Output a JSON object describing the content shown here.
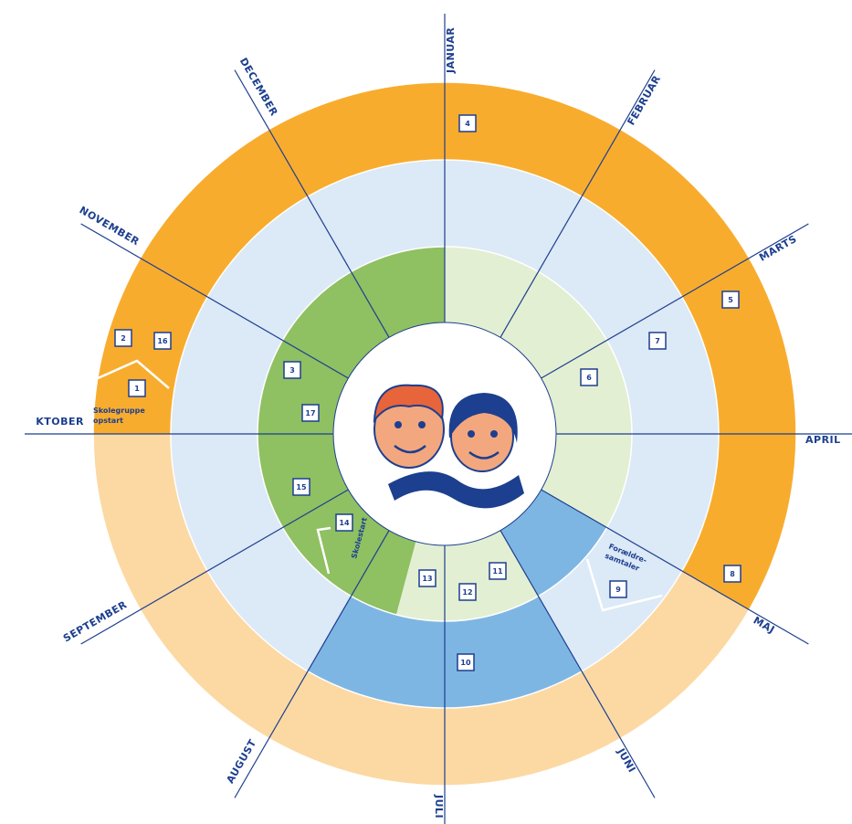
{
  "months": [
    "JANUAR",
    "FEBRUAR",
    "MARTS",
    "APRIL",
    "MAJ",
    "JUNI",
    "JULI",
    "AUGUST",
    "SEPTEMBER",
    "KTOBER",
    "NOVEMBER",
    "DECEMBER"
  ],
  "markers": [
    "4",
    "5",
    "7",
    "6",
    "8",
    "9",
    "10",
    "11",
    "12",
    "13",
    "14",
    "15",
    "17",
    "3",
    "1",
    "2",
    "16"
  ],
  "notes": [
    {
      "lines": [
        "Skolegruppe",
        "opstart"
      ]
    },
    {
      "lines": [
        "Skolestart"
      ]
    },
    {
      "lines": [
        "Forældre-",
        "samtaler"
      ]
    }
  ]
}
